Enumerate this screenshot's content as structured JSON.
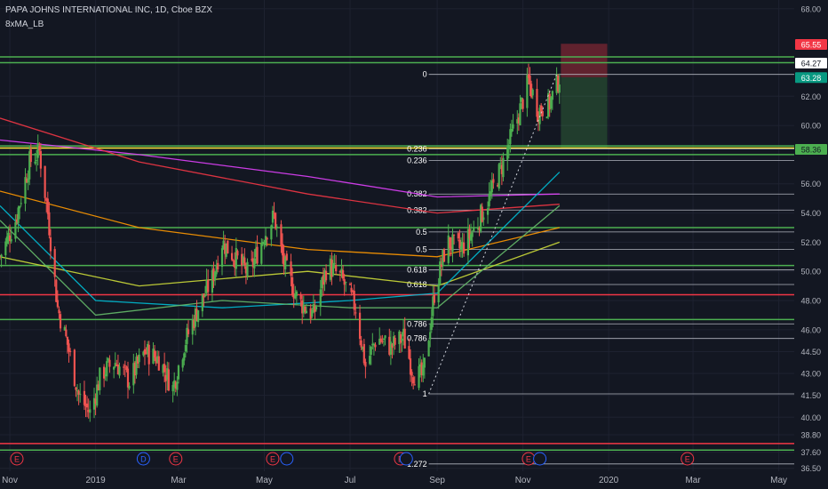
{
  "header": {
    "symbol_line": "PAPA JOHNS INTERNATIONAL INC, 1D, Cboe BZX",
    "indicator": "8xMA_LB"
  },
  "colors": {
    "background": "#131722",
    "grid": "#1e2230",
    "text": "#b2b5be",
    "up": "#26a69a",
    "up_bright": "#4caf50",
    "down": "#ef5350",
    "green_level": "#4caf50",
    "red_level": "#f23645",
    "white_level": "#d1d4dc",
    "yellow_level": "#ffeb3b"
  },
  "chart_data": {
    "type": "candlestick",
    "price_axis": {
      "ylim": [
        36.3,
        68.6
      ],
      "ticks": [
        {
          "value": 68.0,
          "label": "68.00"
        },
        {
          "value": 62.0,
          "label": "62.00"
        },
        {
          "value": 60.0,
          "label": "60.00"
        },
        {
          "value": 56.0,
          "label": "56.00"
        },
        {
          "value": 54.0,
          "label": "54.00"
        },
        {
          "value": 52.0,
          "label": "52.00"
        },
        {
          "value": 50.0,
          "label": "50.00"
        },
        {
          "value": 48.0,
          "label": "48.00"
        },
        {
          "value": 46.0,
          "label": "46.00"
        },
        {
          "value": 44.5,
          "label": "44.50"
        },
        {
          "value": 43.0,
          "label": "43.00"
        },
        {
          "value": 41.5,
          "label": "41.50"
        },
        {
          "value": 40.0,
          "label": "40.00"
        },
        {
          "value": 38.8,
          "label": "38.80"
        },
        {
          "value": 37.6,
          "label": "37.60"
        },
        {
          "value": 36.5,
          "label": "36.50"
        }
      ]
    },
    "time_axis": {
      "xlim": [
        "2018-10-25",
        "2020-05-12"
      ],
      "labels": [
        {
          "date": "2018-11-01",
          "label": "Nov"
        },
        {
          "date": "2019-01-01",
          "label": "2019"
        },
        {
          "date": "2019-03-01",
          "label": "Mar"
        },
        {
          "date": "2019-05-01",
          "label": "May"
        },
        {
          "date": "2019-07-01",
          "label": "Jul"
        },
        {
          "date": "2019-09-01",
          "label": "Sep"
        },
        {
          "date": "2019-11-01",
          "label": "Nov"
        },
        {
          "date": "2020-01-01",
          "label": "2020"
        },
        {
          "date": "2020-03-01",
          "label": "Mar"
        },
        {
          "date": "2020-05-01",
          "label": "May"
        }
      ]
    },
    "price_badges": [
      {
        "value": 65.55,
        "label": "65.55",
        "bg": "#f23645",
        "fg": "#ffffff"
      },
      {
        "value": 64.27,
        "label": "64.27",
        "bg": "#ffffff",
        "fg": "#131722"
      },
      {
        "value": 63.28,
        "label": "63.28",
        "bg": "#089981",
        "fg": "#ffffff"
      },
      {
        "value": 58.36,
        "label": "58.36",
        "bg": "#4caf50",
        "fg": "#131722"
      }
    ],
    "horizontal_levels": [
      {
        "value": 64.7,
        "color": "green"
      },
      {
        "value": 64.3,
        "color": "green"
      },
      {
        "value": 58.6,
        "color": "green"
      },
      {
        "value": 58.45,
        "color": "yellow"
      },
      {
        "value": 58.0,
        "color": "green"
      },
      {
        "value": 53.0,
        "color": "green"
      },
      {
        "value": 50.4,
        "color": "green"
      },
      {
        "value": 48.4,
        "color": "red"
      },
      {
        "value": 46.7,
        "color": "green"
      },
      {
        "value": 38.2,
        "color": "red"
      },
      {
        "value": 37.75,
        "color": "green"
      }
    ],
    "fib_levels": [
      {
        "label": "0",
        "value": 63.5
      },
      {
        "label": "0.236",
        "value": 58.4
      },
      {
        "label": "0.236",
        "value": 57.6
      },
      {
        "label": "0.382",
        "value": 55.3
      },
      {
        "label": "0.382",
        "value": 54.2
      },
      {
        "label": "0.5",
        "value": 52.7
      },
      {
        "label": "0.5",
        "value": 51.5
      },
      {
        "label": "0.618",
        "value": 50.1
      },
      {
        "label": "0.618",
        "value": 49.1
      },
      {
        "label": "0.786",
        "value": 46.4
      },
      {
        "label": "0.786",
        "value": 45.4
      },
      {
        "label": "1",
        "value": 41.6
      },
      {
        "label": "1.272",
        "value": 36.8
      }
    ],
    "position_box": {
      "from": "2019-11-28",
      "to": "2019-12-31",
      "entry": 63.3,
      "stop": 65.6,
      "target": 58.4
    },
    "price_path": [
      [
        "2018-10-25",
        51.0
      ],
      [
        "2018-11-05",
        53.5
      ],
      [
        "2018-11-15",
        57.5
      ],
      [
        "2018-11-22",
        58.2
      ],
      [
        "2018-11-28",
        54.0
      ],
      [
        "2018-12-05",
        47.5
      ],
      [
        "2018-12-12",
        45.0
      ],
      [
        "2018-12-20",
        41.5
      ],
      [
        "2018-12-28",
        40.3
      ],
      [
        "2019-01-05",
        43.0
      ],
      [
        "2019-01-15",
        43.8
      ],
      [
        "2019-01-25",
        42.5
      ],
      [
        "2019-02-05",
        44.5
      ],
      [
        "2019-02-15",
        44.0
      ],
      [
        "2019-02-25",
        42.0
      ],
      [
        "2019-03-05",
        45.0
      ],
      [
        "2019-03-15",
        47.5
      ],
      [
        "2019-03-25",
        49.5
      ],
      [
        "2019-04-01",
        52.0
      ],
      [
        "2019-04-10",
        51.0
      ],
      [
        "2019-04-20",
        49.8
      ],
      [
        "2019-05-01",
        52.5
      ],
      [
        "2019-05-08",
        53.8
      ],
      [
        "2019-05-15",
        50.5
      ],
      [
        "2019-05-25",
        48.0
      ],
      [
        "2019-06-05",
        47.0
      ],
      [
        "2019-06-15",
        50.5
      ],
      [
        "2019-06-25",
        49.5
      ],
      [
        "2019-07-05",
        47.5
      ],
      [
        "2019-07-12",
        43.5
      ],
      [
        "2019-07-20",
        45.5
      ],
      [
        "2019-07-30",
        44.8
      ],
      [
        "2019-08-08",
        45.5
      ],
      [
        "2019-08-15",
        43.0
      ],
      [
        "2019-08-22",
        42.8
      ],
      [
        "2019-08-30",
        48.5
      ],
      [
        "2019-09-08",
        52.0
      ],
      [
        "2019-09-18",
        51.5
      ],
      [
        "2019-09-28",
        53.0
      ],
      [
        "2019-10-08",
        55.0
      ],
      [
        "2019-10-18",
        57.5
      ],
      [
        "2019-10-28",
        60.5
      ],
      [
        "2019-11-05",
        63.0
      ],
      [
        "2019-11-12",
        61.0
      ],
      [
        "2019-11-20",
        61.5
      ],
      [
        "2019-11-27",
        63.3
      ]
    ],
    "moving_averages": [
      {
        "color": "#e040fb",
        "points": [
          [
            "2018-10-25",
            59.0
          ],
          [
            "2019-02-01",
            58.0
          ],
          [
            "2019-06-01",
            56.5
          ],
          [
            "2019-09-01",
            55.1
          ],
          [
            "2019-11-27",
            55.3
          ]
        ]
      },
      {
        "color": "#f23645",
        "points": [
          [
            "2018-10-25",
            60.5
          ],
          [
            "2019-02-01",
            57.5
          ],
          [
            "2019-06-01",
            55.3
          ],
          [
            "2019-09-01",
            54.0
          ],
          [
            "2019-11-27",
            54.6
          ]
        ]
      },
      {
        "color": "#ff9800",
        "points": [
          [
            "2018-10-25",
            55.5
          ],
          [
            "2019-02-01",
            53.0
          ],
          [
            "2019-06-01",
            51.5
          ],
          [
            "2019-09-01",
            51.0
          ],
          [
            "2019-11-27",
            53.0
          ]
        ]
      },
      {
        "color": "#cddc39",
        "points": [
          [
            "2018-10-25",
            51.0
          ],
          [
            "2019-02-01",
            49.0
          ],
          [
            "2019-06-01",
            50.0
          ],
          [
            "2019-09-01",
            49.0
          ],
          [
            "2019-11-27",
            52.0
          ]
        ]
      },
      {
        "color": "#00bcd4",
        "points": [
          [
            "2018-10-25",
            54.5
          ],
          [
            "2019-01-01",
            48.0
          ],
          [
            "2019-04-01",
            47.5
          ],
          [
            "2019-07-01",
            48.0
          ],
          [
            "2019-09-01",
            48.5
          ],
          [
            "2019-11-27",
            56.8
          ]
        ]
      },
      {
        "color": "#66bb6a",
        "points": [
          [
            "2018-10-25",
            53.5
          ],
          [
            "2019-01-01",
            47.0
          ],
          [
            "2019-04-01",
            48.0
          ],
          [
            "2019-07-01",
            47.5
          ],
          [
            "2019-09-01",
            47.5
          ],
          [
            "2019-11-27",
            54.5
          ]
        ]
      }
    ],
    "event_markers": [
      {
        "date": "2018-11-06",
        "label": "E",
        "color": "#f23645"
      },
      {
        "date": "2019-02-04",
        "label": "D",
        "color": "#2962ff"
      },
      {
        "date": "2019-02-27",
        "label": "E",
        "color": "#f23645"
      },
      {
        "date": "2019-05-07",
        "label": "E",
        "color": "#f23645"
      },
      {
        "date": "2019-05-17",
        "label": "",
        "color": "#2962ff"
      },
      {
        "date": "2019-08-06",
        "label": "E",
        "color": "#f23645"
      },
      {
        "date": "2019-08-10",
        "label": "",
        "color": "#2962ff"
      },
      {
        "date": "2019-11-05",
        "label": "E",
        "color": "#f23645"
      },
      {
        "date": "2019-11-13",
        "label": "",
        "color": "#2962ff"
      },
      {
        "date": "2020-02-26",
        "label": "E",
        "color": "#f23645"
      }
    ]
  }
}
